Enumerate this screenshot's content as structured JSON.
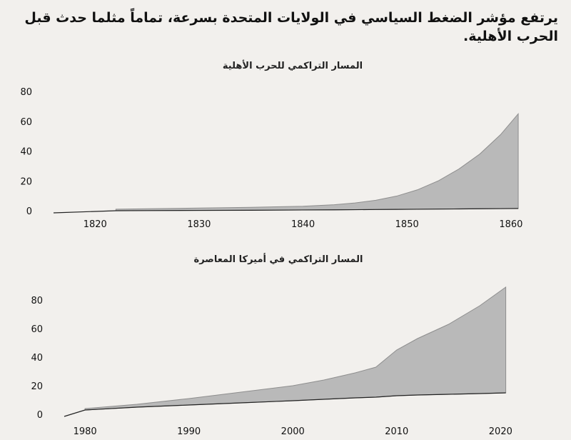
{
  "headline": "يرتفع مؤشر الضغط السياسي في الولايات المتحدة بسرعة، تماماً مثلما حدث قبل الحرب الأهلية.",
  "colors": {
    "area": "#b9b9b9",
    "axis": "#222222",
    "background": "#f2f0ed"
  },
  "chart_data": [
    {
      "type": "area",
      "title": "المسار التراكمي للحرب الأهلية",
      "xlabel": "",
      "ylabel": "",
      "xlim": [
        1816,
        1862
      ],
      "ylim": [
        0,
        80
      ],
      "x_ticks": [
        "1820",
        "1830",
        "1840",
        "1850",
        "1860"
      ],
      "y_ticks": [
        "0",
        "20",
        "40",
        "60",
        "80"
      ],
      "grid": false,
      "x": [
        1822,
        1825,
        1830,
        1835,
        1840,
        1843,
        1845,
        1847,
        1849,
        1851,
        1853,
        1855,
        1857,
        1859,
        1860.7
      ],
      "series": [
        {
          "values": [
            1,
            1.3,
            1.8,
            2.3,
            3,
            4,
            5.2,
            7,
            9.8,
            14,
            20,
            28,
            38,
            51,
            65
          ]
        }
      ],
      "baseline": [
        0,
        0.1,
        0.2,
        0.3,
        0.5,
        0.6,
        0.7,
        0.8,
        0.9,
        1,
        1.1,
        1.2,
        1.3,
        1.4,
        1.5
      ]
    },
    {
      "type": "area",
      "title": "المسار التراكمي في أميركا المعاصرة",
      "xlabel": "",
      "ylabel": "",
      "xlim": [
        1978,
        2023
      ],
      "ylim": [
        0,
        90
      ],
      "x_ticks": [
        "1980",
        "1990",
        "2000",
        "2010",
        "2020"
      ],
      "y_ticks": [
        "0",
        "20",
        "40",
        "60",
        "80"
      ],
      "grid": false,
      "x": [
        1980,
        1985,
        1990,
        1995,
        2000,
        2003,
        2006,
        2008,
        2010,
        2012,
        2015,
        2018,
        2020.5
      ],
      "series": [
        {
          "values": [
            4,
            7,
            11,
            15.5,
            20,
            24,
            29,
            33,
            45,
            53,
            63,
            76,
            89
          ]
        }
      ],
      "baseline": [
        3,
        5,
        6.5,
        8,
        9.5,
        10.5,
        11.5,
        12,
        13,
        13.5,
        14,
        14.5,
        15
      ]
    }
  ]
}
